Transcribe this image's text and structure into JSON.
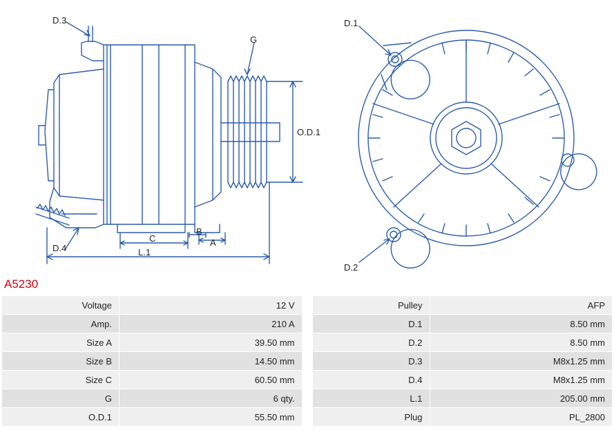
{
  "part_number": "A5230",
  "diagram": {
    "stroke_color": "#2a5caa",
    "stroke_width": 1.4,
    "label_color": "#222222",
    "label_fontsize": 13,
    "labels": {
      "D3": "D.3",
      "D4": "D.4",
      "D1": "D.1",
      "D2": "D.2",
      "G": "G",
      "OD1": "O.D.1",
      "C": "C",
      "B": "B",
      "A": "A",
      "L1": "L.1"
    }
  },
  "specs_left": [
    {
      "label": "Voltage",
      "value": "12 V"
    },
    {
      "label": "Amp.",
      "value": "210 A"
    },
    {
      "label": "Size A",
      "value": "39.50 mm"
    },
    {
      "label": "Size B",
      "value": "14.50 mm"
    },
    {
      "label": "Size C",
      "value": "60.50 mm"
    },
    {
      "label": "G",
      "value": "6 qty."
    },
    {
      "label": "O.D.1",
      "value": "55.50 mm"
    }
  ],
  "specs_right": [
    {
      "label": "Pulley",
      "value": "AFP"
    },
    {
      "label": "D.1",
      "value": "8.50 mm"
    },
    {
      "label": "D.2",
      "value": "8.50 mm"
    },
    {
      "label": "D.3",
      "value": "M8x1.25 mm"
    },
    {
      "label": "D.4",
      "value": "M8x1.25 mm"
    },
    {
      "label": "L.1",
      "value": "205.00 mm"
    },
    {
      "label": "Plug",
      "value": "PL_2800"
    }
  ],
  "table_style": {
    "odd_bg": "#efefef",
    "even_bg": "#e1e1e1",
    "border_color": "#ffffff",
    "text_color": "#222222",
    "fontsize": 13
  }
}
